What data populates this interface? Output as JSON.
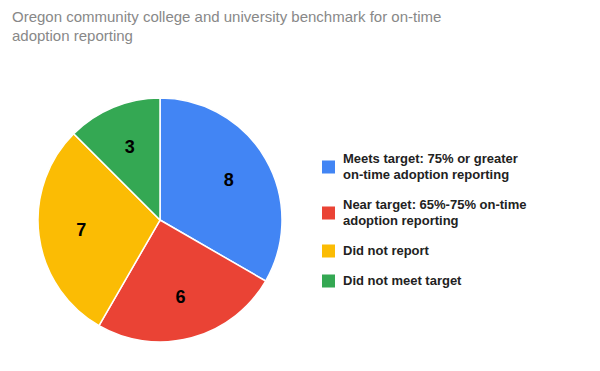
{
  "chart_data": {
    "type": "pie",
    "title": "Oregon community college and university benchmark for on-time\nadoption reporting",
    "categories": [
      "Meets target: 75% or greater\non-time adoption reporting",
      "Near target: 65%-75% on-time\nadoption reporting",
      "Did not report",
      "Did not meet target"
    ],
    "values": [
      8,
      6,
      7,
      3
    ],
    "colors": [
      "#4285F4",
      "#EA4335",
      "#FBBC04",
      "#34A853"
    ],
    "data_labels": true,
    "legend": "right"
  }
}
